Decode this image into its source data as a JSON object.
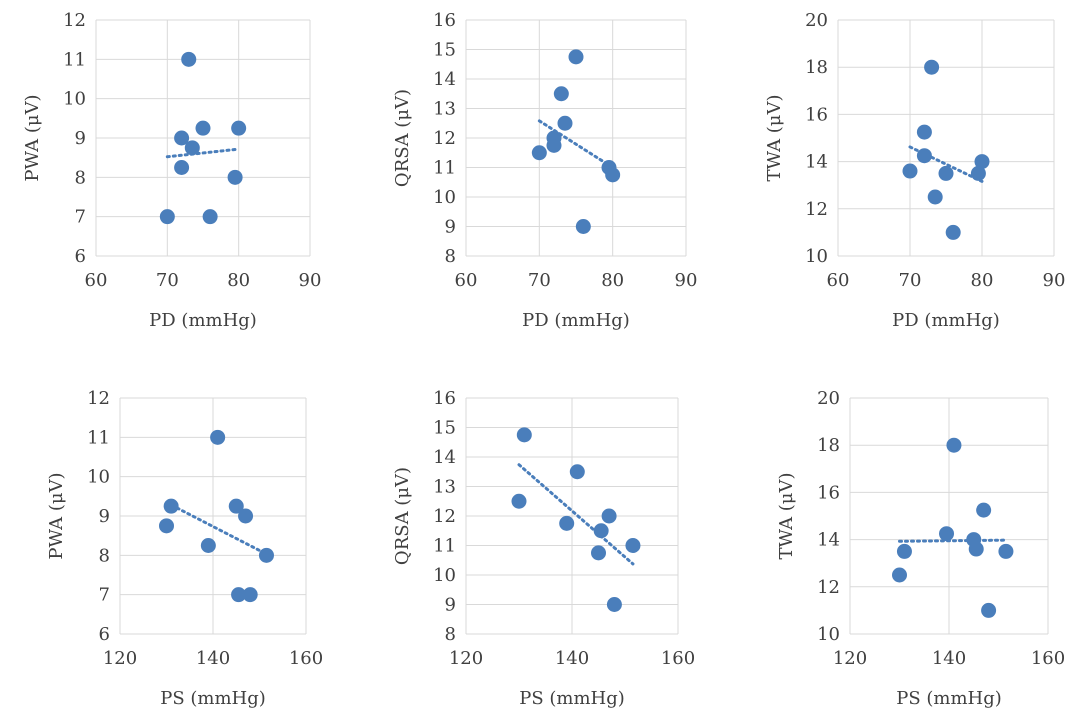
{
  "chart_data": [
    {
      "type": "scatter",
      "xlabel": "PD (mmHg)",
      "ylabel": "PWA (μV)",
      "xlim": [
        60,
        90
      ],
      "ylim": [
        6,
        12
      ],
      "xticks": [
        60,
        70,
        80,
        90
      ],
      "yticks": [
        6,
        7,
        8,
        9,
        10,
        11,
        12
      ],
      "grid": true,
      "trendline": "linear",
      "points": [
        [
          70,
          7
        ],
        [
          72,
          9
        ],
        [
          72,
          8.25
        ],
        [
          73,
          11
        ],
        [
          73.5,
          8.75
        ],
        [
          75,
          9.25
        ],
        [
          76,
          7
        ],
        [
          79.5,
          8
        ],
        [
          80,
          9.25
        ]
      ]
    },
    {
      "type": "scatter",
      "xlabel": "PD (mmHg)",
      "ylabel": "QRSA (μV)",
      "xlim": [
        60,
        90
      ],
      "ylim": [
        8,
        16
      ],
      "xticks": [
        60,
        70,
        80,
        90
      ],
      "yticks": [
        8,
        9,
        10,
        11,
        12,
        13,
        14,
        15,
        16
      ],
      "grid": true,
      "trendline": "linear",
      "points": [
        [
          70,
          11.5
        ],
        [
          72,
          12
        ],
        [
          72,
          11.75
        ],
        [
          73,
          13.5
        ],
        [
          73.5,
          12.5
        ],
        [
          75,
          14.75
        ],
        [
          76,
          9
        ],
        [
          79.5,
          11
        ],
        [
          80,
          10.75
        ]
      ]
    },
    {
      "type": "scatter",
      "xlabel": "PD (mmHg)",
      "ylabel": "TWA (μV)",
      "xlim": [
        60,
        90
      ],
      "ylim": [
        10,
        20
      ],
      "xticks": [
        60,
        70,
        80,
        90
      ],
      "yticks": [
        10,
        12,
        14,
        16,
        18,
        20
      ],
      "grid": true,
      "trendline": "linear",
      "points": [
        [
          70,
          13.6
        ],
        [
          72,
          15.25
        ],
        [
          72,
          14.25
        ],
        [
          73,
          18
        ],
        [
          73.5,
          12.5
        ],
        [
          75,
          13.5
        ],
        [
          76,
          11
        ],
        [
          79.5,
          13.5
        ],
        [
          80,
          14
        ]
      ]
    },
    {
      "type": "scatter",
      "xlabel": "PS (mmHg)",
      "ylabel": "PWA (μV)",
      "xlim": [
        120,
        160
      ],
      "ylim": [
        6,
        12
      ],
      "xticks": [
        120,
        140,
        160
      ],
      "yticks": [
        6,
        7,
        8,
        9,
        10,
        11,
        12
      ],
      "grid": true,
      "trendline": "linear",
      "points": [
        [
          130,
          8.75
        ],
        [
          131,
          9.25
        ],
        [
          139,
          8.25
        ],
        [
          141,
          11
        ],
        [
          145,
          9.25
        ],
        [
          145.5,
          7
        ],
        [
          147,
          9
        ],
        [
          148,
          7
        ],
        [
          151.5,
          8
        ]
      ]
    },
    {
      "type": "scatter",
      "xlabel": "PS (mmHg)",
      "ylabel": "QRSA (μV)",
      "xlim": [
        120,
        160
      ],
      "ylim": [
        8,
        16
      ],
      "xticks": [
        120,
        140,
        160
      ],
      "yticks": [
        8,
        9,
        10,
        11,
        12,
        13,
        14,
        15,
        16
      ],
      "grid": true,
      "trendline": "linear",
      "points": [
        [
          130,
          12.5
        ],
        [
          131,
          14.75
        ],
        [
          139,
          11.75
        ],
        [
          141,
          13.5
        ],
        [
          145,
          10.75
        ],
        [
          145.5,
          11.5
        ],
        [
          147,
          12
        ],
        [
          148,
          9
        ],
        [
          151.5,
          11
        ]
      ]
    },
    {
      "type": "scatter",
      "xlabel": "PS (mmHg)",
      "ylabel": "TWA (μV)",
      "xlim": [
        120,
        160
      ],
      "ylim": [
        10,
        20
      ],
      "xticks": [
        120,
        140,
        160
      ],
      "yticks": [
        10,
        12,
        14,
        16,
        18,
        20
      ],
      "grid": true,
      "trendline": "linear",
      "points": [
        [
          130,
          12.5
        ],
        [
          131,
          13.5
        ],
        [
          139.5,
          14.25
        ],
        [
          141,
          18
        ],
        [
          145,
          14
        ],
        [
          145.5,
          13.6
        ],
        [
          147,
          15.25
        ],
        [
          148,
          11
        ],
        [
          151.5,
          13.5
        ]
      ]
    }
  ],
  "colors": {
    "marker": "#4a7ebb",
    "trendline": "#4a7ebb",
    "grid": "#d9d9d9",
    "text": "#404040"
  }
}
